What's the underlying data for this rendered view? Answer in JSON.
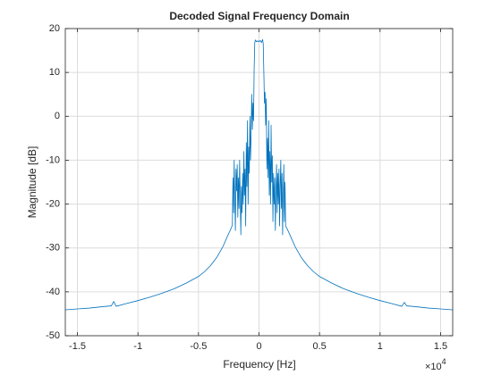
{
  "chart_data": {
    "type": "line",
    "title": "Decoded Signal Frequency Domain",
    "xlabel": "Frequency [Hz]",
    "ylabel": "Magnitude [dB]",
    "x_multiplier": "×10",
    "x_multiplier_exponent": "4",
    "x": [
      -16000,
      -15000,
      -14000,
      -13000,
      -12200,
      -12000,
      -11800,
      -11000,
      -10000,
      -9000,
      -8000,
      -7000,
      -6000,
      -5000,
      -4500,
      -4000,
      -3500,
      -3000,
      -2600,
      -2300,
      -2200,
      -2150,
      -2100,
      -2050,
      -2000,
      -1950,
      -1900,
      -1850,
      -1800,
      -1750,
      -1700,
      -1650,
      -1600,
      -1550,
      -1500,
      -1450,
      -1400,
      -1350,
      -1300,
      -1250,
      -1200,
      -1150,
      -1100,
      -1050,
      -1000,
      -950,
      -900,
      -850,
      -800,
      -750,
      -700,
      -650,
      -600,
      -550,
      -500,
      -450,
      -400,
      -350,
      -300,
      -200,
      -100,
      0,
      100,
      200,
      300,
      350,
      400,
      450,
      500,
      550,
      600,
      650,
      700,
      750,
      800,
      850,
      900,
      950,
      1000,
      1050,
      1100,
      1150,
      1200,
      1250,
      1300,
      1350,
      1400,
      1450,
      1500,
      1550,
      1600,
      1650,
      1700,
      1750,
      1800,
      1850,
      1900,
      1950,
      2000,
      2050,
      2100,
      2150,
      2200,
      2300,
      2600,
      3000,
      3500,
      4000,
      4500,
      5000,
      6000,
      7000,
      8000,
      9000,
      10000,
      11000,
      11800,
      12000,
      12200,
      13000,
      14000,
      15000,
      16000
    ],
    "series": [
      {
        "color": "#0072bd",
        "values": [
          -44.1,
          -43.9,
          -43.7,
          -43.4,
          -43.2,
          -42.2,
          -43.3,
          -42.7,
          -42.0,
          -41.2,
          -40.3,
          -39.3,
          -38.0,
          -36.5,
          -35.4,
          -34.0,
          -32.2,
          -29.8,
          -27.3,
          -25.5,
          -24.8,
          -14,
          -22,
          -10,
          -19,
          -26,
          -12,
          -17,
          -11,
          -23,
          -14,
          -21,
          -10,
          -19,
          -27,
          -16,
          -22,
          -13,
          -20,
          -8,
          -18,
          -12,
          -25,
          -6,
          -16,
          -1,
          -20,
          -7,
          -13,
          0,
          -10,
          -4,
          5,
          -3,
          3,
          -1,
          11,
          16.8,
          17.4,
          17,
          17.2,
          17,
          17.3,
          16.8,
          17.5,
          16.5,
          10,
          3,
          5.5,
          -2,
          4,
          -12,
          -5,
          -14,
          -1,
          -18,
          -8,
          -20,
          -2,
          -15,
          -9,
          -24,
          -13,
          -20,
          -14,
          -26,
          -17,
          -11,
          -22,
          -13,
          -20,
          -12,
          -25,
          -16,
          -10,
          -21,
          -13,
          -27,
          -18,
          -11,
          -24,
          -15,
          -25,
          -25.5,
          -27.3,
          -29.8,
          -32.2,
          -34.0,
          -35.4,
          -36.5,
          -38.0,
          -39.3,
          -40.3,
          -41.2,
          -42.0,
          -42.7,
          -43.3,
          -42.4,
          -43.2,
          -43.4,
          -43.7,
          -43.9,
          -44.1
        ]
      }
    ],
    "xlim": [
      -16000,
      16000
    ],
    "xticks": [
      {
        "value": -15000,
        "label": "-1.5"
      },
      {
        "value": -10000,
        "label": "-1"
      },
      {
        "value": -5000,
        "label": "-0.5"
      },
      {
        "value": 0,
        "label": "0"
      },
      {
        "value": 5000,
        "label": "0.5"
      },
      {
        "value": 10000,
        "label": "1"
      },
      {
        "value": 15000,
        "label": "1.5"
      }
    ],
    "ylim": [
      -50,
      20
    ],
    "yticks": [
      -50,
      -40,
      -30,
      -20,
      -10,
      0,
      10,
      20
    ],
    "grid": true
  }
}
